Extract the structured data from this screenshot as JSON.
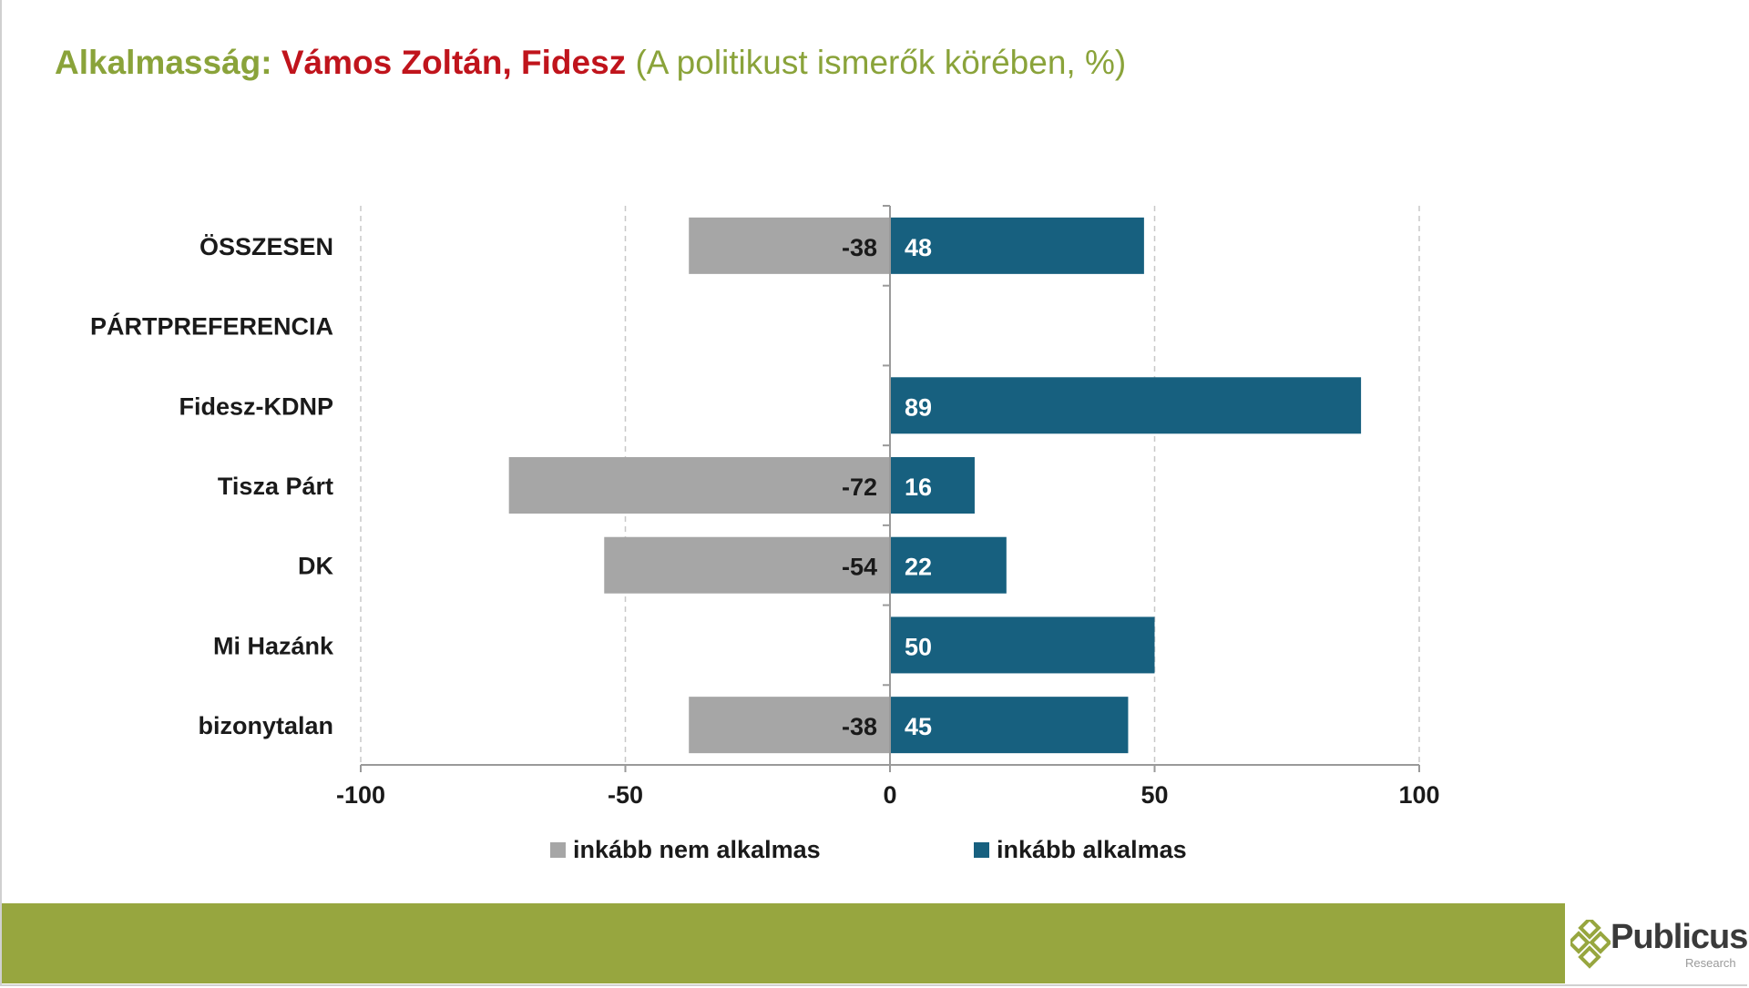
{
  "title": {
    "lead": "Alkalmasság:",
    "name": "Vámos Zoltán, Fidesz",
    "sub": "(A politikust ismerők körében, %)"
  },
  "chart_data": {
    "type": "bar",
    "orientation": "horizontal",
    "stacked": "diverging",
    "categories": [
      "ÖSSZESEN",
      "PÁRTPREFERENCIA",
      "Fidesz-KDNP",
      "Tisza Párt",
      "DK",
      "Mi Hazánk",
      "bizonytalan"
    ],
    "series": [
      {
        "name": "inkább nem alkalmas",
        "color": "#a6a6a6",
        "values": [
          -38,
          null,
          null,
          -72,
          -54,
          null,
          -38
        ]
      },
      {
        "name": "inkább alkalmas",
        "color": "#17607f",
        "values": [
          48,
          null,
          89,
          16,
          22,
          50,
          45
        ]
      }
    ],
    "xlim": [
      -100,
      100
    ],
    "xticks": [
      "-100",
      "-50",
      "0",
      "50",
      "100"
    ],
    "grid": "vertical dashed",
    "legend": "bottom"
  },
  "footer": {
    "logo_text": "Publicus",
    "logo_sub": "Research",
    "band_color": "#97a63f"
  }
}
